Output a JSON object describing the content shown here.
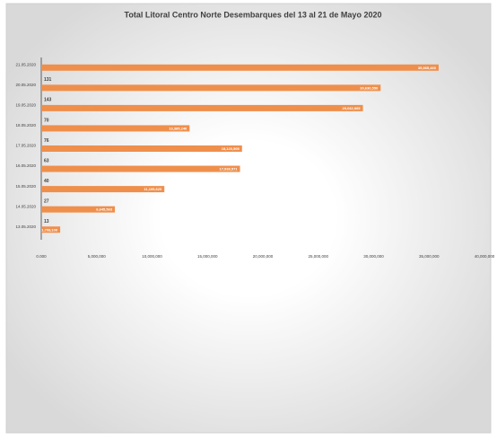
{
  "chart_data": {
    "type": "bar",
    "orientation": "horizontal",
    "title": "Total Litoral Centro Norte Desembarques del 13 al 21 de Mayo 2020",
    "categories": [
      "21.05.2020",
      "20.05.2020",
      "19.05.2020",
      "18.05.2020",
      "17.05.2020",
      "16.05.2020",
      "15.05.2020",
      "14.05.2020",
      "13.05.2020"
    ],
    "values": [
      35865460,
      30630550,
      29032965,
      13385240,
      18120505,
      17938571,
      11109620,
      6645563,
      1708100
    ],
    "value_labels": [
      "35,865,460",
      "30,630,550",
      "29,032,965",
      "13,385,240",
      "18,120,505",
      "17,938,571",
      "11,109,620",
      "6,645,563",
      "1,708,100"
    ],
    "counts": [
      null,
      131,
      143,
      70,
      76,
      63,
      40,
      27,
      13
    ],
    "color": "#ef8f4c",
    "xlim": [
      0,
      40000000
    ],
    "xticks": [
      {
        "value": 0,
        "label": "0.000"
      },
      {
        "value": 5000000,
        "label": "5,000,000"
      },
      {
        "value": 10000000,
        "label": "10,000,000"
      },
      {
        "value": 15000000,
        "label": "15,000,000"
      },
      {
        "value": 20000000,
        "label": "20,000,000"
      },
      {
        "value": 25000000,
        "label": "25,000,000"
      },
      {
        "value": 30000000,
        "label": "30,000,000"
      },
      {
        "value": 35000000,
        "label": "35,000,000"
      },
      {
        "value": 40000000,
        "label": "40,000,000"
      }
    ],
    "grid": false
  }
}
